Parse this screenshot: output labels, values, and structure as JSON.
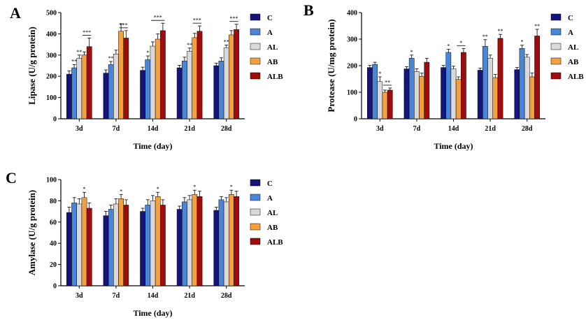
{
  "chart_data": [
    {
      "panel": "A",
      "type": "bar",
      "xlabel": "Time (day)",
      "ylabel": "Lipase (U/g protein)",
      "ylim": [
        0,
        500
      ],
      "yticks": [
        0,
        100,
        200,
        300,
        400,
        500
      ],
      "categories": [
        "3d",
        "7d",
        "14d",
        "21d",
        "28d"
      ],
      "legend_position": "right",
      "series": [
        {
          "name": "C",
          "color": "#14147a",
          "values": [
            210,
            215,
            228,
            240,
            250
          ],
          "errors": [
            15,
            15,
            15,
            12,
            12
          ]
        },
        {
          "name": "A",
          "color": "#4a86d8",
          "values": [
            240,
            255,
            278,
            272,
            272
          ],
          "errors": [
            15,
            15,
            18,
            18,
            15
          ]
        },
        {
          "name": "AL",
          "color": "#d9d9d9",
          "values": [
            285,
            305,
            342,
            318,
            335
          ],
          "errors": [
            15,
            18,
            20,
            15,
            12
          ]
        },
        {
          "name": "AB",
          "color": "#f5a03c",
          "values": [
            300,
            412,
            375,
            382,
            395
          ],
          "errors": [
            15,
            35,
            25,
            20,
            20
          ]
        },
        {
          "name": "ALB",
          "color": "#a00c0c",
          "values": [
            340,
            380,
            415,
            412,
            420
          ],
          "errors": [
            40,
            35,
            35,
            25,
            25
          ]
        }
      ],
      "annotations": [
        {
          "category": "3d",
          "series": "A",
          "text": "**"
        },
        {
          "category": "3d",
          "series": "AL",
          "text": "**"
        },
        {
          "category": "3d",
          "series": "ALB",
          "text": "***",
          "bracket": [
            "AB",
            "ALB"
          ]
        },
        {
          "category": "7d",
          "series": "A",
          "text": "**"
        },
        {
          "category": "7d",
          "series": "ALB",
          "text": "***",
          "bracket": [
            "AB",
            "ALB"
          ]
        },
        {
          "category": "14d",
          "series": "A",
          "text": "*"
        },
        {
          "category": "14d",
          "series": "ALB",
          "text": "***",
          "bracket": [
            "AL",
            "ALB"
          ]
        },
        {
          "category": "21d",
          "series": "AL",
          "text": "**"
        },
        {
          "category": "21d",
          "series": "ALB",
          "text": "***",
          "bracket": [
            "AB",
            "ALB"
          ]
        },
        {
          "category": "28d",
          "series": "AL",
          "text": "**"
        },
        {
          "category": "28d",
          "series": "ALB",
          "text": "***",
          "bracket": [
            "AB",
            "ALB"
          ]
        }
      ]
    },
    {
      "panel": "B",
      "type": "bar",
      "xlabel": "Time (day)",
      "ylabel": "Protease (U/mg protein)",
      "ylim": [
        0,
        400
      ],
      "yticks": [
        0,
        100,
        200,
        300,
        400
      ],
      "categories": [
        "3d",
        "7d",
        "14d",
        "21d",
        "28d"
      ],
      "legend_position": "right",
      "series": [
        {
          "name": "C",
          "color": "#14147a",
          "values": [
            193,
            188,
            193,
            183,
            185
          ],
          "errors": [
            8,
            8,
            8,
            8,
            8
          ]
        },
        {
          "name": "A",
          "color": "#4a86d8",
          "values": [
            205,
            228,
            250,
            273,
            265
          ],
          "errors": [
            8,
            12,
            12,
            25,
            12
          ]
        },
        {
          "name": "AL",
          "color": "#d9d9d9",
          "values": [
            140,
            178,
            188,
            228,
            232
          ],
          "errors": [
            18,
            10,
            10,
            12,
            10
          ]
        },
        {
          "name": "AB",
          "color": "#f5a03c",
          "values": [
            100,
            160,
            148,
            155,
            158
          ],
          "errors": [
            8,
            12,
            10,
            12,
            15
          ]
        },
        {
          "name": "ALB",
          "color": "#a00c0c",
          "values": [
            108,
            213,
            250,
            303,
            312
          ],
          "errors": [
            8,
            15,
            15,
            15,
            25
          ]
        }
      ],
      "annotations": [
        {
          "category": "3d",
          "series": "AL",
          "text": "*"
        },
        {
          "category": "3d",
          "series": "ALB",
          "text": "**",
          "bracket": [
            "AB",
            "ALB"
          ]
        },
        {
          "category": "7d",
          "series": "A",
          "text": "*"
        },
        {
          "category": "14d",
          "series": "A",
          "text": "*"
        },
        {
          "category": "14d",
          "series": "ALB",
          "text": "*",
          "bracket": [
            "AB",
            "ALB"
          ]
        },
        {
          "category": "21d",
          "series": "A",
          "text": "**"
        },
        {
          "category": "21d",
          "series": "ALB",
          "text": "**"
        },
        {
          "category": "28d",
          "series": "A",
          "text": "*"
        },
        {
          "category": "28d",
          "series": "ALB",
          "text": "**"
        }
      ]
    },
    {
      "panel": "C",
      "type": "bar",
      "xlabel": "Time (day)",
      "ylabel": "Amylase (U/g protein)",
      "ylim": [
        0,
        100
      ],
      "yticks": [
        0,
        20,
        40,
        60,
        80,
        100
      ],
      "categories": [
        "3d",
        "7d",
        "14d",
        "21d",
        "28d"
      ],
      "legend_position": "right",
      "series": [
        {
          "name": "C",
          "color": "#14147a",
          "values": [
            69,
            66,
            70,
            72,
            71
          ],
          "errors": [
            5,
            4,
            3,
            3,
            3
          ]
        },
        {
          "name": "A",
          "color": "#4a86d8",
          "values": [
            78,
            72,
            76,
            79,
            81
          ],
          "errors": [
            5,
            4,
            5,
            4,
            3
          ]
        },
        {
          "name": "AL",
          "color": "#d9d9d9",
          "values": [
            77,
            77,
            80,
            81,
            79
          ],
          "errors": [
            5,
            5,
            5,
            4,
            4
          ]
        },
        {
          "name": "AB",
          "color": "#f5a03c",
          "values": [
            83,
            82,
            84,
            86,
            86
          ],
          "errors": [
            5,
            4,
            4,
            4,
            4
          ]
        },
        {
          "name": "ALB",
          "color": "#a00c0c",
          "values": [
            73,
            76,
            76,
            84,
            84
          ],
          "errors": [
            5,
            5,
            5,
            5,
            5
          ]
        }
      ],
      "annotations": [
        {
          "category": "3d",
          "series": "AB",
          "text": "*"
        },
        {
          "category": "7d",
          "series": "AB",
          "text": "*"
        },
        {
          "category": "14d",
          "series": "AB",
          "text": "*"
        },
        {
          "category": "21d",
          "series": "AB",
          "text": "*"
        },
        {
          "category": "28d",
          "series": "AB",
          "text": "*"
        }
      ]
    }
  ]
}
